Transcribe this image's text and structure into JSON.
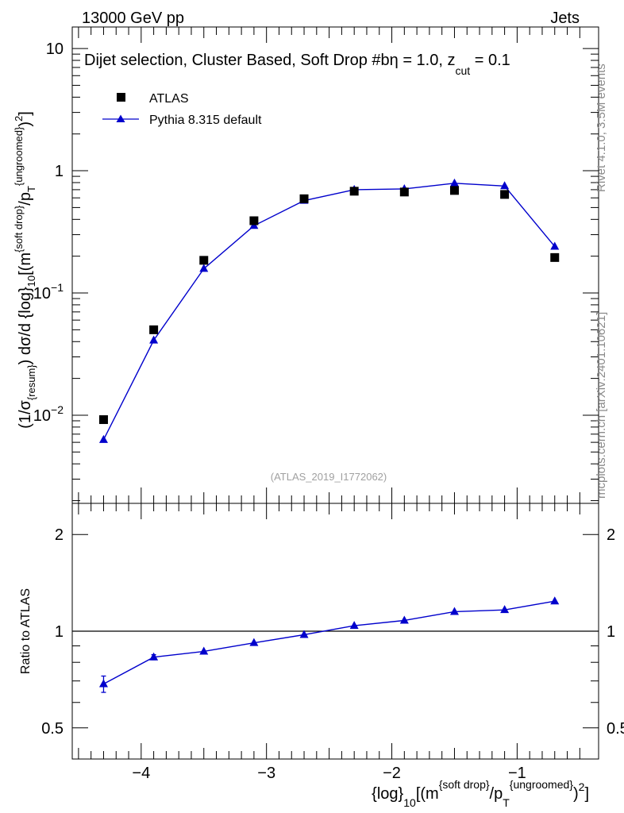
{
  "header": {
    "energy_label": "13000 GeV pp",
    "category": "Jets"
  },
  "side": {
    "rivet_label": "Rivet 4.1.0,  3.5M events",
    "source_label": "mcplots.cern.ch [arXiv:2401.10621]"
  },
  "colors": {
    "mc": "#0000cc",
    "data": "#000000",
    "watermark": "#a0a0a0"
  },
  "chart_data": [
    {
      "type": "scatter",
      "panel": "main",
      "title": "Dijet selection, Cluster Based, Soft Drop #b",
      "title_suffix": " = 1.0, z",
      "title_sub": "cut",
      "title_end": " = 0.1",
      "title_greek": "η",
      "analysis_label": "(ATLAS_2019_I1772062)",
      "ylabel": {
        "p1": "(1/σ",
        "s1": "{resum}",
        "p2": ") dσ/d {log}",
        "s2": "10",
        "p3": "[(m",
        "sup1": "{soft drop}",
        "p4": "/p",
        "sub3": "T",
        "sup2": "{ungroomed}",
        "p5": ")",
        "sup3": "2",
        "p6": "]"
      },
      "yscale": "log",
      "ylim": [
        0.0019,
        15
      ],
      "yticks": [
        {
          "value": 0.01,
          "base": "10",
          "exp": "−2"
        },
        {
          "value": 0.1,
          "base": "10",
          "exp": "−1"
        },
        {
          "value": 1,
          "base": "1",
          "exp": ""
        },
        {
          "value": 10,
          "base": "10",
          "exp": ""
        }
      ],
      "xlim": [
        -4.55,
        -0.35
      ],
      "legend": {
        "position": "top-left",
        "entries": [
          "ATLAS",
          "Pythia 8.315 default"
        ]
      },
      "x": [
        -4.3,
        -3.9,
        -3.5,
        -3.1,
        -2.7,
        -2.3,
        -1.9,
        -1.5,
        -1.1,
        -0.7
      ],
      "series": [
        {
          "name": "ATLAS",
          "marker": "square",
          "values": [
            0.0092,
            0.05,
            0.185,
            0.39,
            0.59,
            0.68,
            0.67,
            0.69,
            0.64,
            0.195
          ]
        },
        {
          "name": "Pythia 8.315 default",
          "marker": "triangle",
          "values": [
            0.0063,
            0.041,
            0.158,
            0.355,
            0.57,
            0.7,
            0.71,
            0.79,
            0.75,
            0.24
          ]
        }
      ]
    },
    {
      "type": "line",
      "panel": "ratio",
      "ylabel": "Ratio to ATLAS",
      "yscale": "log",
      "ylim": [
        0.4,
        2.5
      ],
      "yticks": [
        {
          "value": 0.5,
          "label": "0.5"
        },
        {
          "value": 1,
          "label": "1"
        },
        {
          "value": 2,
          "label": "2"
        }
      ],
      "reference_line": 1,
      "x": [
        -4.3,
        -3.9,
        -3.5,
        -3.1,
        -2.7,
        -2.3,
        -1.9,
        -1.5,
        -1.1,
        -0.7
      ],
      "series": [
        {
          "name": "Pythia 8.315 default / ATLAS",
          "values": [
            0.685,
            0.83,
            0.865,
            0.92,
            0.975,
            1.04,
            1.08,
            1.15,
            1.165,
            1.24
          ],
          "errors": [
            0.04,
            0.015,
            0.01,
            0.008,
            0.007,
            0.006,
            0.006,
            0.006,
            0.007,
            0.012
          ]
        }
      ],
      "xlabel": {
        "p1": "{log}",
        "s1": "10",
        "p2": "[(m",
        "sup1": "{soft drop}",
        "p3": "/p",
        "sub2": "T",
        "sup2": "{ungroomed}",
        "p4": ")",
        "sup3": "2",
        "p5": "]"
      },
      "xticks": [
        {
          "value": -4,
          "label": "−4"
        },
        {
          "value": -3,
          "label": "−3"
        },
        {
          "value": -2,
          "label": "−2"
        },
        {
          "value": -1,
          "label": "−1"
        }
      ]
    }
  ]
}
